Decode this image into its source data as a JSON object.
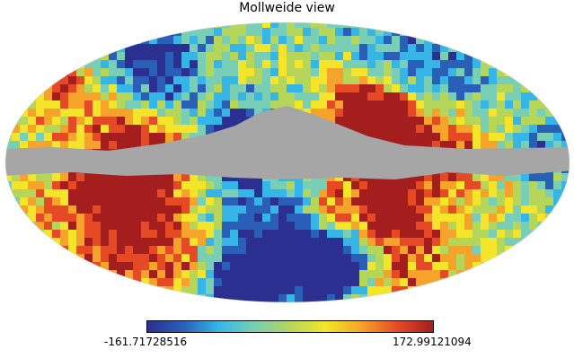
{
  "figure": {
    "title": "Mollweide view"
  },
  "map": {
    "projection": "mollweide",
    "masked_band_color": "#a6a6a6",
    "colormap": "jet"
  },
  "colorbar": {
    "min_label": "-161.71728516",
    "max_label": "172.99121094",
    "colors": [
      "#2b2f8f",
      "#2a5fb8",
      "#35b6e6",
      "#78cfb6",
      "#b6d65a",
      "#f4e52a",
      "#f5a32a",
      "#e54a24",
      "#a41e1e"
    ]
  }
}
